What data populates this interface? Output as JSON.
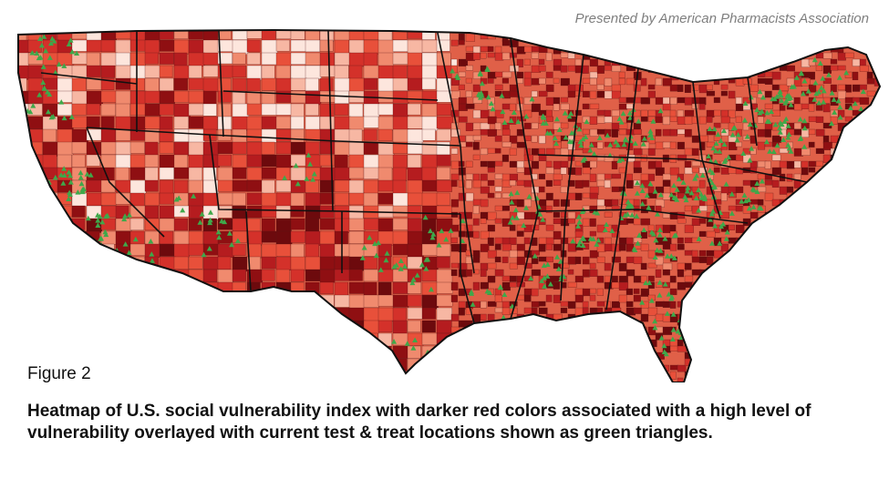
{
  "credit": "Presented by American Pharmacists Association",
  "figure_label": "Figure 2",
  "caption": "Heatmap of U.S. social vulnerability index with darker red colors associated with a high level of vulnerability overlayed with current test & treat locations shown as green triangles.",
  "colors": {
    "low": "#fbe3da",
    "mid": "#e8503a",
    "high": "#8f0f12",
    "marker": "#3fa84a",
    "border": "#111111"
  },
  "icons": {
    "location": "green-triangle-marker"
  }
}
